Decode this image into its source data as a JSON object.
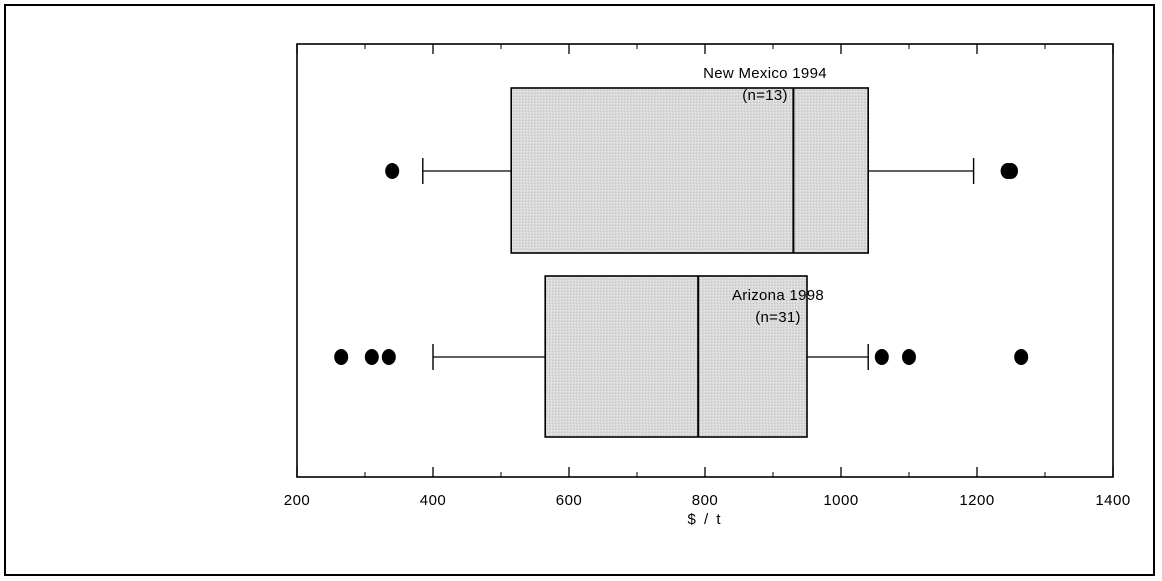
{
  "chart_data": {
    "type": "boxplot",
    "xlabel": "$ / t",
    "ylabel": "",
    "xlim": [
      200,
      1400
    ],
    "ticks": [
      "200",
      "400",
      "600",
      "800",
      "1000",
      "1200",
      "1400"
    ],
    "tick_values": [
      200,
      400,
      600,
      800,
      1000,
      1200,
      1400
    ],
    "grid": false,
    "box_color": "#d9d9d9",
    "series": [
      {
        "name": "New Mexico 1994",
        "n_label": "(n=13)",
        "whisker_low": 385,
        "q1": 515,
        "median": 930,
        "q3": 1040,
        "whisker_high": 1195,
        "outliers": [
          340,
          1245,
          1250
        ]
      },
      {
        "name": "Arizona 1998",
        "n_label": "(n=31)",
        "whisker_low": 400,
        "q1": 565,
        "median": 790,
        "q3": 950,
        "whisker_high": 1040,
        "outliers": [
          265,
          310,
          335,
          1060,
          1100,
          1265
        ]
      }
    ]
  }
}
